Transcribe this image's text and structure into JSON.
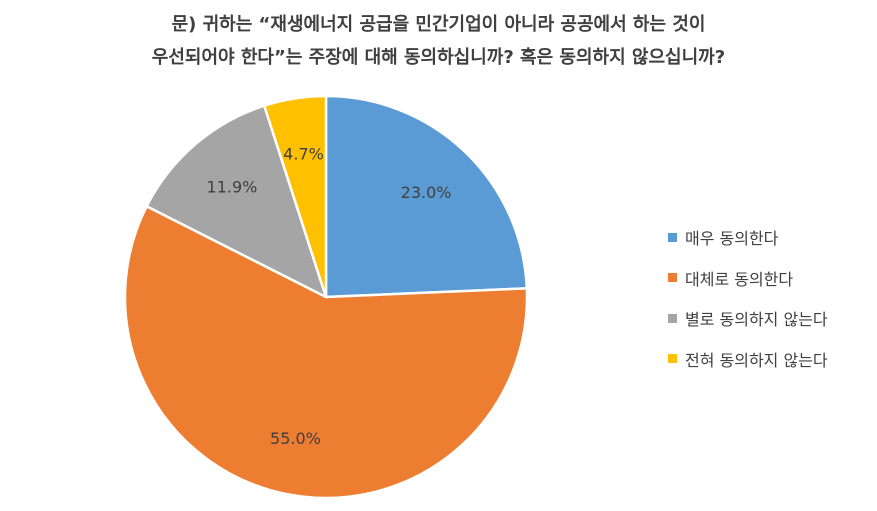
{
  "chart_data": {
    "type": "pie",
    "title_lines": [
      "문) 귀하는 “재생에너지 공급을 민간기업이 아니라 공공에서 하는 것이",
      "우선되어야 한다”는 주장에 대해 동의하십니까? 혹은 동의하지 않으십니까?"
    ],
    "slices": [
      {
        "name": "매우 동의한다",
        "value": 23.0,
        "label": "23.0%",
        "color": "#5B9BD5"
      },
      {
        "name": "대체로 동의한다",
        "value": 55.0,
        "label": "55.0%",
        "color": "#ED7D31"
      },
      {
        "name": "별로 동의하지 않는다",
        "value": 11.9,
        "label": "11.9%",
        "color": "#A5A5A5"
      },
      {
        "name": "전혀 동의하지 않는다",
        "value": 4.7,
        "label": "4.7%",
        "color": "#FFC000"
      }
    ],
    "legend_position": "right"
  }
}
